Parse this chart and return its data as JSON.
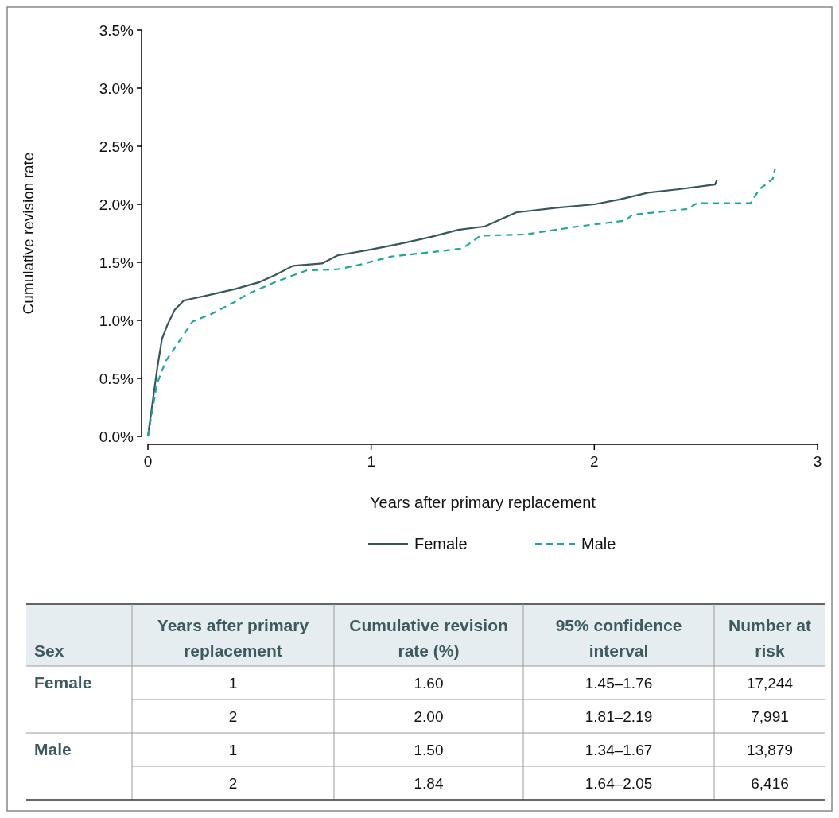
{
  "chart_data": [
    {
      "type": "line",
      "xlabel": "Years after primary replacement",
      "ylabel": "Cumulative revision rate",
      "xlim": [
        0,
        3
      ],
      "ylim": [
        0,
        3.5
      ],
      "xticks": [
        0,
        1,
        2,
        3
      ],
      "yticks": [
        {
          "value": 0,
          "label": "0.0%"
        },
        {
          "value": 0.5,
          "label": "0.5%"
        },
        {
          "value": 1,
          "label": "1.0%"
        },
        {
          "value": 1.5,
          "label": "1.5%"
        },
        {
          "value": 2,
          "label": "2.0%"
        },
        {
          "value": 2.5,
          "label": "2.5%"
        },
        {
          "value": 3,
          "label": "3.0%"
        },
        {
          "value": 3.5,
          "label": "3.5%"
        }
      ],
      "legend": "bottom",
      "grid": false,
      "series": [
        {
          "name": "Female",
          "color": "#37575a",
          "line_style": "solid",
          "x": [
            0,
            0.042,
            0.063,
            0.087,
            0.12,
            0.16,
            0.23,
            0.39,
            0.5,
            0.57,
            0.65,
            0.78,
            0.85,
            1.0,
            1.13,
            1.27,
            1.39,
            1.51,
            1.65,
            1.83,
            2.0,
            2.11,
            2.24,
            2.38,
            2.54,
            2.55
          ],
          "values": [
            0,
            0.59,
            0.84,
            0.96,
            1.09,
            1.17,
            1.2,
            1.27,
            1.33,
            1.39,
            1.47,
            1.49,
            1.56,
            1.61,
            1.66,
            1.72,
            1.78,
            1.81,
            1.93,
            1.97,
            2.0,
            2.04,
            2.1,
            2.13,
            2.17,
            2.21
          ]
        },
        {
          "name": "Male",
          "color": "#1aa89c",
          "line_style": "dashed",
          "x": [
            0,
            0.04,
            0.08,
            0.13,
            0.2,
            0.29,
            0.39,
            0.44,
            0.57,
            0.71,
            0.85,
            0.95,
            1.09,
            1.28,
            1.41,
            1.49,
            1.69,
            1.79,
            1.93,
            2.14,
            2.17,
            2.42,
            2.46,
            2.7,
            2.74,
            2.8,
            2.81
          ],
          "values": [
            0,
            0.45,
            0.65,
            0.79,
            0.99,
            1.06,
            1.16,
            1.22,
            1.33,
            1.43,
            1.44,
            1.48,
            1.55,
            1.59,
            1.62,
            1.73,
            1.74,
            1.77,
            1.81,
            1.86,
            1.91,
            1.96,
            2.01,
            2.01,
            2.13,
            2.22,
            2.31
          ]
        }
      ]
    },
    {
      "type": "other",
      "categories": [
        "Sex",
        "Years after primary replacement",
        "Cumulative revision rate (%)",
        "95% confidence interval",
        "Number at risk"
      ],
      "cell_labels": [
        [
          "Female",
          "1",
          "1.60",
          "1.45–1.76",
          "17,244"
        ],
        [
          null,
          "2",
          "2.00",
          "1.81–2.19",
          "7,991"
        ],
        [
          "Male",
          "1",
          "1.50",
          "1.34–1.67",
          "13,879"
        ],
        [
          null,
          "2",
          "1.84",
          "1.64–2.05",
          "6,416"
        ]
      ]
    }
  ]
}
